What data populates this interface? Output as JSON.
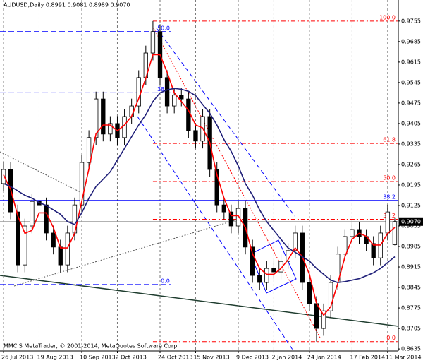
{
  "chart_data": {
    "type": "candlestick",
    "title": "AUDUSD,Daily  0.8991 0.9081 0.8989 0.9070",
    "footer": "MMCIS MetaTrader, © 2001-2014, MetaQuotes Software Corp.",
    "categories": [
      "26 Jul 2013",
      null,
      null,
      null,
      null,
      "19 Aug 2013",
      null,
      null,
      null,
      null,
      null,
      "10 Sep 2013",
      null,
      null,
      null,
      null,
      "2 Oct 2013",
      null,
      null,
      null,
      null,
      null,
      "24 Oct 2013",
      null,
      null,
      null,
      null,
      "15 Nov 2013",
      null,
      null,
      null,
      null,
      null,
      "9 Dec 2013",
      null,
      null,
      null,
      null,
      "2 Jan 2014",
      null,
      null,
      null,
      null,
      "24 Jan 2014",
      null,
      null,
      null,
      null,
      null,
      "17 Feb 2014",
      null,
      null,
      null,
      null,
      "11 Mar 2014",
      null
    ],
    "open": [
      0.92,
      0.9248,
      0.9103,
      0.8922,
      0.9055,
      0.9139,
      0.9127,
      0.9031,
      0.8983,
      0.8922,
      0.9031,
      0.9127,
      0.9272,
      0.9357,
      0.9489,
      0.9369,
      0.9405,
      0.9357,
      0.9429,
      0.9465,
      0.9562,
      0.9646,
      0.9719,
      0.9562,
      0.9465,
      0.9502,
      0.9489,
      0.9381,
      0.9345,
      0.9429,
      0.9248,
      0.9127,
      0.9103,
      0.9055,
      0.9115,
      0.8983,
      0.8886,
      0.8862,
      0.891,
      0.8898,
      0.8934,
      0.8971,
      0.9031,
      0.8862,
      0.879,
      0.8705,
      0.8765,
      0.8862,
      0.8959,
      0.9019,
      0.9043,
      0.9019,
      0.8995,
      0.8946,
      0.9031,
      0.8991
    ],
    "high": [
      0.9273,
      0.9273,
      0.9128,
      0.908,
      0.9164,
      0.9164,
      0.9152,
      0.9056,
      0.9008,
      0.9056,
      0.9152,
      0.9297,
      0.9382,
      0.9514,
      0.9514,
      0.943,
      0.943,
      0.9454,
      0.949,
      0.9587,
      0.9671,
      0.9755,
      0.9744,
      0.9587,
      0.9527,
      0.9527,
      0.9514,
      0.9406,
      0.9454,
      0.9454,
      0.9273,
      0.9152,
      0.9128,
      0.914,
      0.914,
      0.9008,
      0.8911,
      0.8935,
      0.8935,
      0.8959,
      0.8996,
      0.9056,
      0.9056,
      0.8887,
      0.8815,
      0.879,
      0.8887,
      0.8984,
      0.9044,
      0.9068,
      0.9068,
      0.9044,
      0.902,
      0.9056,
      0.9128,
      0.9081
    ],
    "low": [
      0.9175,
      0.9078,
      0.8897,
      0.8897,
      0.903,
      0.9102,
      0.9006,
      0.8958,
      0.8897,
      0.8897,
      0.9006,
      0.9102,
      0.9247,
      0.9332,
      0.9344,
      0.9344,
      0.9332,
      0.9332,
      0.9404,
      0.944,
      0.9537,
      0.9621,
      0.9537,
      0.944,
      0.944,
      0.9464,
      0.9356,
      0.932,
      0.932,
      0.9223,
      0.9102,
      0.9078,
      0.903,
      0.903,
      0.8958,
      0.8861,
      0.8837,
      0.8837,
      0.8873,
      0.8873,
      0.8909,
      0.8946,
      0.8837,
      0.8765,
      0.866,
      0.868,
      0.874,
      0.8837,
      0.8934,
      0.8994,
      0.8994,
      0.897,
      0.8921,
      0.8921,
      0.9006,
      0.8989
    ],
    "close": [
      0.9248,
      0.9103,
      0.8922,
      0.9055,
      0.9139,
      0.9127,
      0.9031,
      0.8983,
      0.8922,
      0.9031,
      0.9127,
      0.9272,
      0.9357,
      0.9489,
      0.9369,
      0.9405,
      0.9357,
      0.9429,
      0.9465,
      0.9562,
      0.9646,
      0.9719,
      0.9562,
      0.9465,
      0.9502,
      0.9489,
      0.9381,
      0.9345,
      0.9429,
      0.9248,
      0.9127,
      0.9103,
      0.9055,
      0.9115,
      0.8983,
      0.8886,
      0.8862,
      0.891,
      0.8898,
      0.8934,
      0.8971,
      0.9031,
      0.8862,
      0.879,
      0.8705,
      0.8765,
      0.8862,
      0.8959,
      0.9019,
      0.9043,
      0.9019,
      0.8995,
      0.8946,
      0.9031,
      0.9103,
      0.907
    ],
    "series": [
      {
        "color": "#ff0000",
        "values": [
          0.923,
          0.918,
          0.909,
          0.903,
          0.904,
          0.91,
          0.91,
          0.905,
          0.898,
          0.898,
          0.903,
          0.914,
          0.925,
          0.937,
          0.94,
          0.94,
          0.938,
          0.94,
          0.943,
          0.949,
          0.956,
          0.964,
          0.964,
          0.958,
          0.951,
          0.948,
          0.945,
          0.94,
          0.939,
          0.934,
          0.923,
          0.915,
          0.909,
          0.909,
          0.905,
          0.896,
          0.891,
          0.889,
          0.889,
          0.891,
          0.894,
          0.898,
          0.895,
          0.889,
          0.879,
          0.875,
          0.878,
          0.886,
          0.895,
          0.901,
          0.903,
          0.902,
          0.899,
          0.899,
          0.903,
          0.905
        ]
      },
      {
        "color": "#1e1e78",
        "values": [
          0.92,
          0.919,
          0.9175,
          0.916,
          0.915,
          0.9135,
          0.9125,
          0.911,
          0.9095,
          0.907,
          0.906,
          0.91,
          0.915,
          0.919,
          0.9215,
          0.924,
          0.928,
          0.932,
          0.936,
          0.94,
          0.9435,
          0.948,
          0.951,
          0.952,
          0.9525,
          0.9522,
          0.9515,
          0.95,
          0.947,
          0.944,
          0.94,
          0.935,
          0.931,
          0.926,
          0.92,
          0.916,
          0.911,
          0.907,
          0.904,
          0.901,
          0.898,
          0.8965,
          0.895,
          0.8935,
          0.891,
          0.889,
          0.887,
          0.8862,
          0.8865,
          0.887,
          0.8875,
          0.8885,
          0.8895,
          0.891,
          0.893,
          0.895
        ]
      }
    ],
    "levels": [
      {
        "label": "100.0",
        "price": 0.9755,
        "color": "#ff0000",
        "style": "dashdot"
      },
      {
        "label": "61.8",
        "price": 0.9337,
        "color": "#ff0000",
        "style": "dashdot"
      },
      {
        "label": "50.0",
        "price": 0.9207,
        "color": "#ff0000",
        "style": "dashdot"
      },
      {
        "label": "38.2",
        "price": 0.9078,
        "color": "#ff0000",
        "style": "dashdot"
      },
      {
        "label": "0.0",
        "price": 0.866,
        "color": "#ff0000",
        "style": "dashdot"
      },
      {
        "label": "50.0",
        "price": 0.9719,
        "color": "#0000ff",
        "style": "dashed"
      },
      {
        "label": "38.2",
        "price": 0.951,
        "color": "#0000ff",
        "style": "dashed"
      },
      {
        "label": "0.0",
        "price": 0.8855,
        "color": "#0000ff",
        "style": "dashed"
      },
      {
        "label": "38.2",
        "price": 0.9142,
        "color": "#0000ff",
        "style": "solid"
      }
    ],
    "last_price": {
      "value": 0.907,
      "label": "0.9070"
    },
    "ylim": [
      0.8628,
      0.9827
    ],
    "yticks": [
      0.9755,
      0.9685,
      0.9615,
      0.9545,
      0.9475,
      0.9405,
      0.9335,
      0.9265,
      0.9195,
      0.9125,
      0.9055,
      0.8985,
      0.8915,
      0.8845,
      0.8775,
      0.8705,
      0.8635
    ],
    "grid": true
  }
}
